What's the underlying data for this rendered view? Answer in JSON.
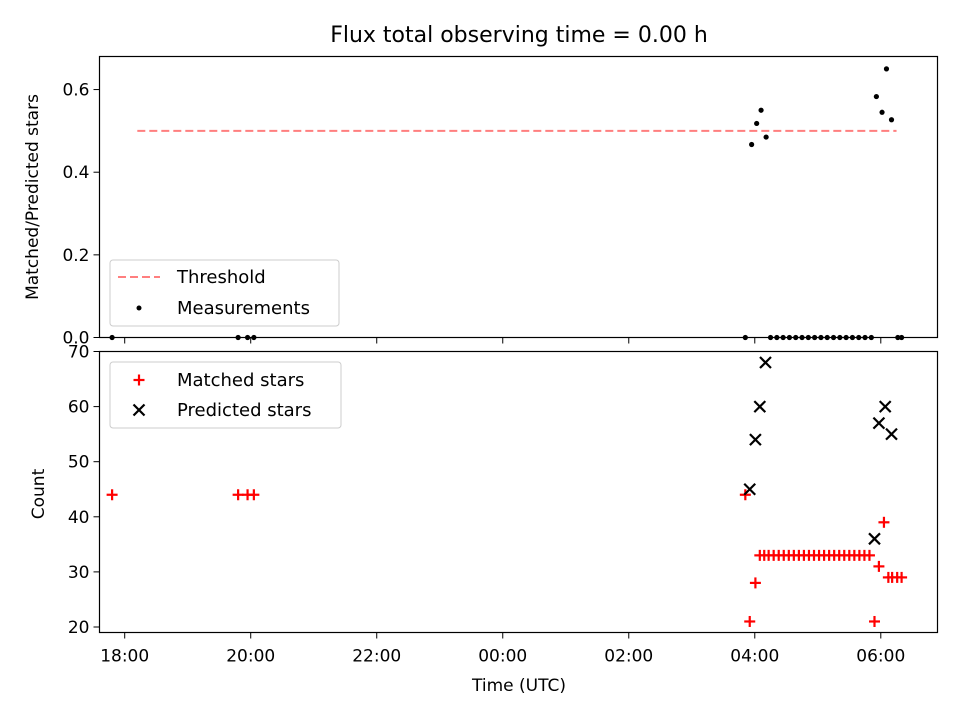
{
  "chart_data": [
    {
      "type": "scatter",
      "title": "Flux total observing time = 0.00 h",
      "xlabel": "",
      "ylabel": "Matched/Predicted stars",
      "xlim": [
        -6.4,
        6.9
      ],
      "ylim": [
        0.0,
        0.68
      ],
      "yticks": [
        0.0,
        0.2,
        0.4,
        0.6
      ],
      "yticklabels": [
        "0.0",
        "0.2",
        "0.4",
        "0.6"
      ],
      "grid": false,
      "legend_position": "lower-left",
      "threshold": {
        "name": "Threshold",
        "value": 0.5,
        "x": [
          -5.8,
          6.25
        ],
        "color": "#ff7f7f",
        "style": "dashed"
      },
      "series": [
        {
          "name": "Measurements",
          "color": "#000000",
          "marker": "dot",
          "x": [
            -6.2,
            -4.2,
            -4.05,
            -3.95,
            3.85,
            3.95,
            4.03,
            4.1,
            4.18,
            4.25,
            4.35,
            4.45,
            4.55,
            4.65,
            4.75,
            4.85,
            4.95,
            5.05,
            5.15,
            5.25,
            5.35,
            5.45,
            5.55,
            5.65,
            5.75,
            5.85,
            5.93,
            6.02,
            6.09,
            6.17,
            6.27,
            6.33
          ],
          "y": [
            0.0,
            0.0,
            0.0,
            0.0,
            0.0,
            0.467,
            0.518,
            0.55,
            0.485,
            0.0,
            0.0,
            0.0,
            0.0,
            0.0,
            0.0,
            0.0,
            0.0,
            0.0,
            0.0,
            0.0,
            0.0,
            0.0,
            0.0,
            0.0,
            0.0,
            0.0,
            0.583,
            0.545,
            0.65,
            0.527,
            0.0,
            0.0
          ]
        }
      ]
    },
    {
      "type": "scatter",
      "title": "",
      "xlabel": "Time (UTC)",
      "ylabel": "Count",
      "xlim": [
        -6.4,
        6.9
      ],
      "ylim": [
        19,
        70
      ],
      "yticks": [
        20,
        30,
        40,
        50,
        60,
        70
      ],
      "yticklabels": [
        "20",
        "30",
        "40",
        "50",
        "60",
        "70"
      ],
      "xticks": [
        -6,
        -4,
        -2,
        0,
        2,
        4,
        6
      ],
      "xticklabels": [
        "18:00",
        "20:00",
        "22:00",
        "00:00",
        "02:00",
        "04:00",
        "06:00"
      ],
      "grid": false,
      "legend_position": "upper-left",
      "series": [
        {
          "name": "Matched stars",
          "color": "#ff0000",
          "marker": "plus",
          "x": [
            -6.2,
            -4.2,
            -4.05,
            -3.95,
            3.85,
            3.92,
            4.01,
            4.08,
            4.15,
            4.22,
            4.3,
            4.38,
            4.46,
            4.54,
            4.62,
            4.7,
            4.78,
            4.86,
            4.94,
            5.02,
            5.1,
            5.18,
            5.26,
            5.34,
            5.42,
            5.5,
            5.58,
            5.66,
            5.74,
            5.82,
            5.9,
            5.97,
            6.05,
            6.12,
            6.18,
            6.26,
            6.33
          ],
          "y": [
            44,
            44,
            44,
            44,
            44,
            21,
            28,
            33,
            33,
            33,
            33,
            33,
            33,
            33,
            33,
            33,
            33,
            33,
            33,
            33,
            33,
            33,
            33,
            33,
            33,
            33,
            33,
            33,
            33,
            33,
            21,
            31,
            39,
            29,
            29,
            29,
            29
          ]
        },
        {
          "name": "Predicted stars",
          "color": "#000000",
          "marker": "x",
          "x": [
            3.92,
            4.01,
            4.08,
            4.17,
            5.9,
            5.97,
            6.07,
            6.17
          ],
          "y": [
            45,
            54,
            60,
            68,
            36,
            57,
            60,
            55
          ]
        }
      ]
    }
  ]
}
